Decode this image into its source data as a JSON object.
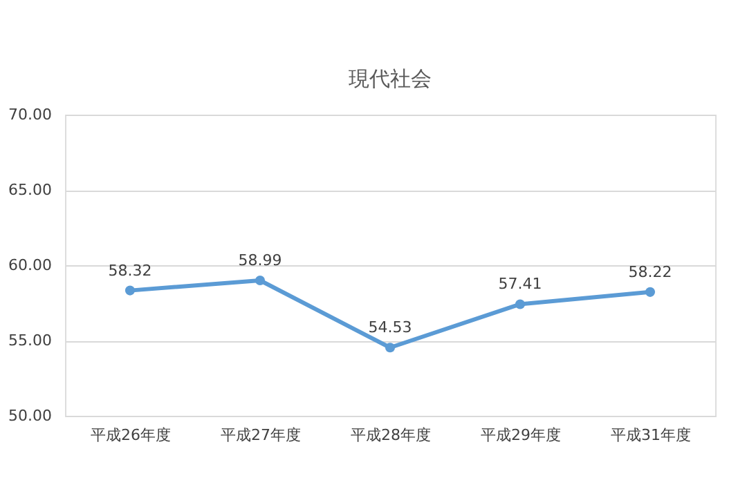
{
  "chart_data": {
    "type": "line",
    "title": "現代社会",
    "categories": [
      "平成26年度",
      "平成27年度",
      "平成28年度",
      "平成29年度",
      "平成31年度"
    ],
    "series": [
      {
        "color": "#5b9bd5",
        "values": [
          58.32,
          58.99,
          54.53,
          57.41,
          58.22
        ]
      }
    ],
    "ylim": [
      50,
      70
    ],
    "yticks": [
      {
        "value": 50,
        "label": "50.00"
      },
      {
        "value": 55,
        "label": "55.00"
      },
      {
        "value": 60,
        "label": "60.00"
      },
      {
        "value": 65,
        "label": "65.00"
      },
      {
        "value": 70,
        "label": "70.00"
      }
    ],
    "grid": "y",
    "data_labels": true,
    "marker": "circle",
    "line_style": "solid"
  }
}
